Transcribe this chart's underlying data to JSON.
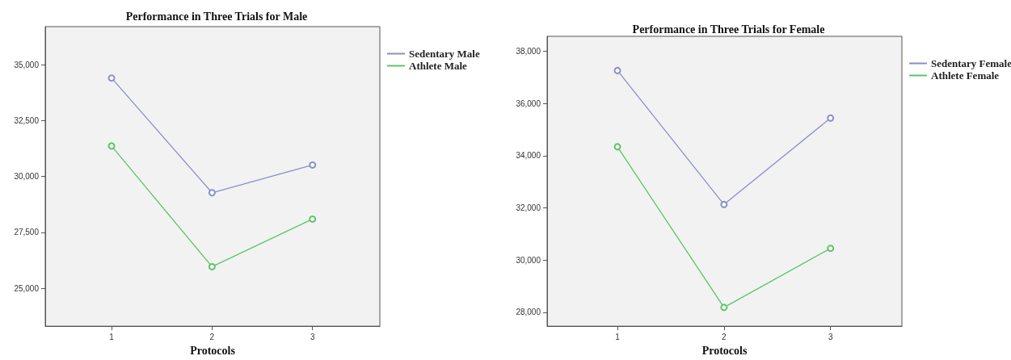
{
  "chart_data": [
    {
      "type": "line",
      "title": "Performance in Three Trials for Male",
      "xlabel": "Protocols",
      "x": [
        1,
        2,
        3
      ],
      "xlim": [
        0.34,
        3.67
      ],
      "xticks": [
        1,
        2,
        3
      ],
      "ylim": [
        23300,
        36700
      ],
      "yticks": [
        {
          "value": 25000,
          "label": "25,000"
        },
        {
          "value": 27500,
          "label": "27,500"
        },
        {
          "value": 30000,
          "label": "30,000"
        },
        {
          "value": 32500,
          "label": "32,500"
        },
        {
          "value": 35000,
          "label": "35,000"
        }
      ],
      "grid": false,
      "legend": "top right",
      "marker": "circle",
      "line_style": "solid",
      "series": [
        {
          "name": "Sedentary Male",
          "color": "#8b8fc8",
          "values": [
            34400,
            29270,
            30510
          ]
        },
        {
          "name": "Athlete Male",
          "color": "#5cc46a",
          "values": [
            31360,
            25960,
            28090
          ]
        }
      ]
    },
    {
      "type": "line",
      "title": "Performance in Three Trials for Female",
      "xlabel": "Protocols",
      "x": [
        1,
        2,
        3
      ],
      "xlim": [
        0.34,
        3.67
      ],
      "xticks": [
        1,
        2,
        3
      ],
      "ylim": [
        27470,
        38570
      ],
      "yticks": [
        {
          "value": 28000,
          "label": "28,000"
        },
        {
          "value": 30000,
          "label": "30,000"
        },
        {
          "value": 32000,
          "label": "32,000"
        },
        {
          "value": 34000,
          "label": "34,000"
        },
        {
          "value": 36000,
          "label": "36,000"
        },
        {
          "value": 38000,
          "label": "38,000"
        }
      ],
      "grid": false,
      "legend": "top right",
      "marker": "circle",
      "line_style": "solid",
      "series": [
        {
          "name": "Sedentary Female",
          "color": "#8b8fc8",
          "values": [
            37260,
            32130,
            35440
          ]
        },
        {
          "name": "Athlete Female",
          "color": "#5cc46a",
          "values": [
            34340,
            28190,
            30450
          ]
        }
      ]
    }
  ]
}
